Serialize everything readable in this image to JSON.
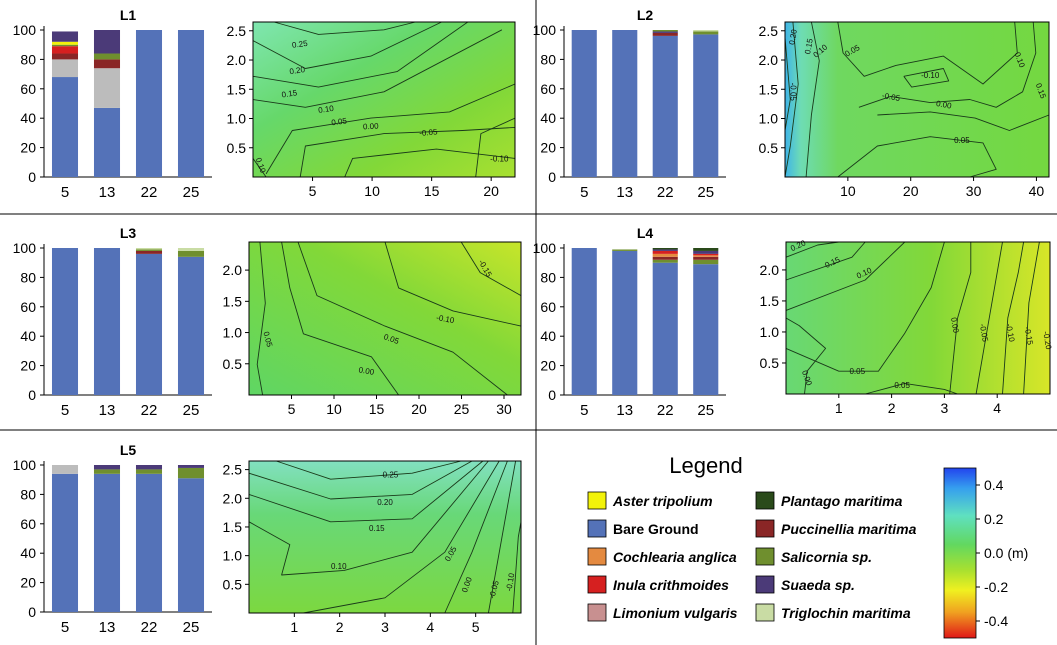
{
  "chart_data": [
    {
      "type": "bar",
      "panel": "L1",
      "title": "L1",
      "categories": [
        "5",
        "13",
        "22",
        "25"
      ],
      "yticks": [
        "0",
        "20",
        "40",
        "60",
        "80",
        "100"
      ],
      "ylim": [
        0,
        100
      ],
      "stacked": true,
      "series": [
        {
          "name": "Bare Ground",
          "values": [
            68,
            47,
            100,
            100
          ]
        },
        {
          "name": "Grey",
          "values": [
            12,
            27,
            0,
            0
          ]
        },
        {
          "name": "Puccinellia maritima",
          "values": [
            4,
            6,
            0,
            0
          ]
        },
        {
          "name": "Inula crithmoides",
          "values": [
            5,
            0,
            0,
            0
          ]
        },
        {
          "name": "Salicornia sp.",
          "values": [
            1,
            4,
            0,
            0
          ]
        },
        {
          "name": "Aster tripolium",
          "values": [
            2,
            0,
            0,
            0
          ]
        },
        {
          "name": "Suaeda sp.",
          "values": [
            7,
            16,
            0,
            0
          ]
        }
      ]
    },
    {
      "type": "contour",
      "panel": "L1",
      "xticks": [
        "5",
        "10",
        "15",
        "20"
      ],
      "yticks": [
        "0.5",
        "1.0",
        "1.5",
        "2.0",
        "2.5"
      ],
      "xlim": [
        0,
        22
      ],
      "ylim": [
        0,
        2.65
      ],
      "contour_labels": [
        "0.25",
        "0.20",
        "0.15",
        "0.10",
        "0.05",
        "0.00",
        "-0.05",
        "-0.10",
        "0.10"
      ]
    },
    {
      "type": "bar",
      "panel": "L2",
      "title": "L2",
      "categories": [
        "5",
        "13",
        "22",
        "25"
      ],
      "yticks": [
        "0",
        "20",
        "40",
        "60",
        "80",
        "100"
      ],
      "ylim": [
        0,
        100
      ],
      "stacked": true,
      "series": [
        {
          "name": "Bare Ground",
          "values": [
            100,
            100,
            96,
            97
          ]
        },
        {
          "name": "Puccinellia maritima",
          "values": [
            0,
            0,
            2,
            0
          ]
        },
        {
          "name": "Suaeda sp.",
          "values": [
            0,
            0,
            1,
            0
          ]
        },
        {
          "name": "Salicornia sp.",
          "values": [
            0,
            0,
            1,
            2
          ]
        },
        {
          "name": "Triglochin maritima",
          "values": [
            0,
            0,
            0,
            1
          ]
        }
      ]
    },
    {
      "type": "contour",
      "panel": "L2",
      "xticks": [
        "10",
        "20",
        "30",
        "40"
      ],
      "yticks": [
        "0.5",
        "1.0",
        "1.5",
        "2.0",
        "2.5"
      ],
      "xlim": [
        0,
        42
      ],
      "ylim": [
        0,
        2.65
      ],
      "contour_labels": [
        "0.20",
        "0.15",
        "0.10",
        "0.05",
        "-0.10",
        "-0.05",
        "0.00",
        "0.05",
        "0.10",
        "0.15",
        "-0.05"
      ]
    },
    {
      "type": "bar",
      "panel": "L3",
      "title": "L3",
      "categories": [
        "5",
        "13",
        "22",
        "25"
      ],
      "yticks": [
        "0",
        "20",
        "40",
        "60",
        "80",
        "100"
      ],
      "ylim": [
        0,
        100
      ],
      "stacked": true,
      "series": [
        {
          "name": "Bare Ground",
          "values": [
            100,
            100,
            96,
            94
          ]
        },
        {
          "name": "Puccinellia maritima",
          "values": [
            0,
            0,
            2,
            0
          ]
        },
        {
          "name": "Salicornia sp.",
          "values": [
            0,
            0,
            1,
            4
          ]
        },
        {
          "name": "Triglochin maritima",
          "values": [
            0,
            0,
            1,
            2
          ]
        }
      ]
    },
    {
      "type": "contour",
      "panel": "L3",
      "xticks": [
        "5",
        "10",
        "15",
        "20",
        "25",
        "30"
      ],
      "yticks": [
        "0.5",
        "1.0",
        "1.5",
        "2.0"
      ],
      "xlim": [
        0,
        32
      ],
      "ylim": [
        0,
        2.45
      ],
      "contour_labels": [
        "0.05",
        "0.00",
        "0.05",
        "-0.10",
        "-0.15"
      ]
    },
    {
      "type": "bar",
      "panel": "L4",
      "title": "L4",
      "categories": [
        "5",
        "13",
        "22",
        "25"
      ],
      "yticks": [
        "0",
        "20",
        "40",
        "60",
        "80",
        "100"
      ],
      "ylim": [
        0,
        100
      ],
      "stacked": true,
      "series": [
        {
          "name": "Bare Ground",
          "values": [
            100,
            98,
            90,
            89
          ]
        },
        {
          "name": "Salicornia sp.",
          "values": [
            0,
            1,
            2,
            3
          ]
        },
        {
          "name": "Puccinellia maritima",
          "values": [
            0,
            0,
            2,
            2
          ]
        },
        {
          "name": "Cochlearia anglica",
          "values": [
            0,
            0,
            2,
            1
          ]
        },
        {
          "name": "Inula crithmoides",
          "values": [
            0,
            0,
            2,
            1
          ]
        },
        {
          "name": "Suaeda sp.",
          "values": [
            0,
            0,
            1,
            2
          ]
        },
        {
          "name": "Plantago maritima",
          "values": [
            0,
            0,
            1,
            2
          ]
        }
      ]
    },
    {
      "type": "contour",
      "panel": "L4",
      "xticks": [
        "1",
        "2",
        "3",
        "4"
      ],
      "yticks": [
        "0.5",
        "1.0",
        "1.5",
        "2.0"
      ],
      "xlim": [
        0,
        5
      ],
      "ylim": [
        0,
        2.45
      ],
      "contour_labels": [
        "0.20",
        "0.15",
        "0.10",
        "0.05",
        "0.00",
        "0.05",
        "0.00",
        "-0.05",
        "-0.10",
        "-0.15",
        "-0.20"
      ]
    },
    {
      "type": "bar",
      "panel": "L5",
      "title": "L5",
      "categories": [
        "5",
        "13",
        "22",
        "25"
      ],
      "yticks": [
        "0",
        "20",
        "40",
        "60",
        "80",
        "100"
      ],
      "ylim": [
        0,
        100
      ],
      "stacked": true,
      "series": [
        {
          "name": "Bare Ground",
          "values": [
            94,
            94,
            94,
            91
          ]
        },
        {
          "name": "Grey",
          "values": [
            6,
            0,
            0,
            0
          ]
        },
        {
          "name": "Salicornia sp.",
          "values": [
            0,
            3,
            3,
            7
          ]
        },
        {
          "name": "Suaeda sp.",
          "values": [
            0,
            3,
            3,
            2
          ]
        }
      ]
    },
    {
      "type": "contour",
      "panel": "L5",
      "xticks": [
        "1",
        "2",
        "3",
        "4",
        "5"
      ],
      "yticks": [
        "0.5",
        "1.0",
        "1.5",
        "2.0",
        "2.5"
      ],
      "xlim": [
        0,
        6
      ],
      "ylim": [
        0,
        2.65
      ],
      "contour_labels": [
        "0.25",
        "0.20",
        "0.15",
        "0.10",
        "0.05",
        "0.00",
        "-0.05",
        "-0.10"
      ]
    }
  ],
  "legend": {
    "title": "Legend",
    "entries": [
      {
        "label": "Aster tripolium",
        "color": "#f2f20a",
        "italic": true
      },
      {
        "label": "Bare Ground",
        "color": "#5472b8",
        "italic": false
      },
      {
        "label": "Cochlearia anglica",
        "color": "#e48a40",
        "italic": true
      },
      {
        "label": "Inula crithmoides",
        "color": "#d62020",
        "italic": true
      },
      {
        "label": "Limonium vulgaris",
        "color": "#c89090",
        "italic": true
      },
      {
        "label": "Plantago maritima",
        "color": "#2a4a1a",
        "italic": true
      },
      {
        "label": "Puccinellia maritima",
        "color": "#8a2626",
        "italic": true
      },
      {
        "label": "Salicornia sp.",
        "color": "#6f8f2e",
        "italic": true
      },
      {
        "label": "Suaeda sp.",
        "color": "#4b3a78",
        "italic": true
      },
      {
        "label": "Triglochin maritima",
        "color": "#c9dca4",
        "italic": true
      }
    ],
    "colorbar": {
      "ticks": [
        "0.4",
        "0.2",
        "0.0 (m)",
        "-0.2",
        "-0.4"
      ],
      "range": [
        -0.5,
        0.5
      ]
    }
  },
  "colors": {
    "Bare Ground": "#5472b8",
    "Grey": "#bcbcbc",
    "Puccinellia maritima": "#8a2626",
    "Inula crithmoides": "#d62020",
    "Salicornia sp.": "#6f8f2e",
    "Aster tripolium": "#f2f20a",
    "Suaeda sp.": "#4b3a78",
    "Triglochin maritima": "#c9dca4",
    "Cochlearia anglica": "#e48a40",
    "Plantago maritima": "#2a4a1a",
    "Limonium vulgaris": "#c89090"
  }
}
